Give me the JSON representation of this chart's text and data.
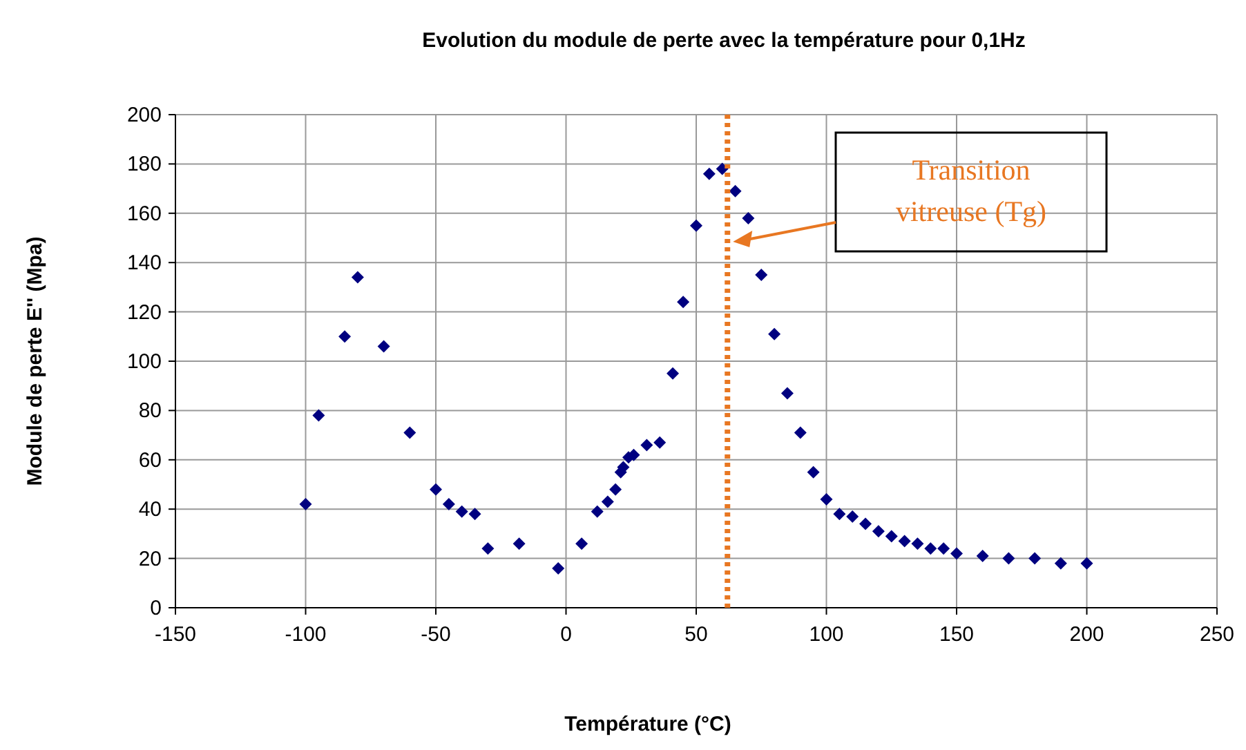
{
  "chart_data": {
    "type": "scatter",
    "title": "Evolution du module de perte avec la température pour 0,1Hz",
    "xlabel": "Température (°C)",
    "ylabel": "Module de perte E'' (Mpa)",
    "x": [
      -100,
      -95,
      -85,
      -80,
      -70,
      -60,
      -50,
      -45,
      -40,
      -35,
      -30,
      -18,
      -3,
      6,
      12,
      16,
      19,
      21,
      22,
      24,
      26,
      31,
      36,
      41,
      45,
      50,
      55,
      60,
      65,
      70,
      75,
      80,
      85,
      90,
      95,
      100,
      105,
      110,
      115,
      120,
      125,
      130,
      135,
      140,
      145,
      150,
      160,
      170,
      180,
      190,
      200
    ],
    "series": [
      {
        "color": "#000080",
        "values": [
          42,
          78,
          110,
          134,
          106,
          71,
          48,
          42,
          39,
          38,
          24,
          26,
          16,
          26,
          39,
          43,
          48,
          55,
          57,
          61,
          62,
          66,
          67,
          95,
          124,
          155,
          176,
          178,
          169,
          158,
          135,
          111,
          87,
          71,
          55,
          44,
          38,
          37,
          34,
          31,
          29,
          27,
          26,
          24,
          24,
          22,
          21,
          20,
          20,
          18,
          18
        ]
      }
    ],
    "xlim": [
      -150,
      250
    ],
    "xticks": [
      -150,
      -100,
      -50,
      0,
      50,
      100,
      150,
      200,
      250
    ],
    "ylim": [
      0,
      200
    ],
    "yticks": [
      0,
      20,
      40,
      60,
      80,
      100,
      120,
      140,
      160,
      180,
      200
    ],
    "grid": true,
    "marker": "diamond",
    "ref_lines": [
      {
        "axis": "x",
        "value": 62,
        "color": "#e87722",
        "line_style": "dotted"
      }
    ],
    "annotations": [
      "Transition vitreuse (Tg)"
    ]
  }
}
